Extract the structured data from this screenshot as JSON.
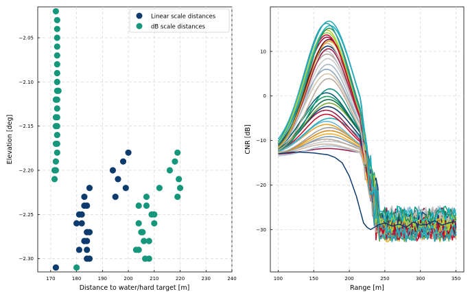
{
  "chart_data": [
    {
      "type": "scatter",
      "xlabel": "Distance to water/hard target [m]",
      "ylabel": "Elevation [deg]",
      "xlim": [
        165,
        240
      ],
      "ylim": [
        -2.315,
        -2.015
      ],
      "xticks": [
        170,
        180,
        190,
        200,
        210,
        220,
        230,
        240
      ],
      "yticks": [
        -2.3,
        -2.25,
        -2.2,
        -2.15,
        -2.1,
        -2.05
      ],
      "xtick_labels": [
        "170",
        "180",
        "190",
        "200",
        "210",
        "220",
        "230",
        "240"
      ],
      "ytick_labels": [
        "−2.30",
        "−2.25",
        "−2.20",
        "−2.15",
        "−2.10",
        "−2.05"
      ],
      "grid": true,
      "legend_position": "top-right",
      "series": [
        {
          "name": "Linear scale distances",
          "color": "#0d3b6e",
          "points": [
            [
              172,
              -2.31
            ],
            [
              180,
              -2.26
            ],
            [
              181,
              -2.29
            ],
            [
              181,
              -2.25
            ],
            [
              182,
              -2.25
            ],
            [
              182,
              -2.26
            ],
            [
              183,
              -2.23
            ],
            [
              183,
              -2.24
            ],
            [
              183,
              -2.28
            ],
            [
              184,
              -2.27
            ],
            [
              184,
              -2.28
            ],
            [
              184,
              -2.24
            ],
            [
              184,
              -2.29
            ],
            [
              184,
              -2.3
            ],
            [
              185,
              -2.3
            ],
            [
              185,
              -2.27
            ],
            [
              185,
              -2.22
            ],
            [
              194,
              -2.2
            ],
            [
              195,
              -2.23
            ],
            [
              196,
              -2.21
            ],
            [
              198,
              -2.19
            ],
            [
              199,
              -2.22
            ],
            [
              200,
              -2.18
            ]
          ]
        },
        {
          "name": "dB scale distances",
          "color": "#16967a",
          "points": [
            [
              171.5,
              -2.21
            ],
            [
              171.5,
              -2.2
            ],
            [
              172,
              -2.02
            ],
            [
              172,
              -2.12
            ],
            [
              172,
              -2.14
            ],
            [
              172,
              -2.15
            ],
            [
              172,
              -2.17
            ],
            [
              172,
              -2.19
            ],
            [
              172,
              -2.2
            ],
            [
              172.5,
              -2.03
            ],
            [
              172.5,
              -2.04
            ],
            [
              172.5,
              -2.05
            ],
            [
              172.5,
              -2.06
            ],
            [
              172.5,
              -2.07
            ],
            [
              172.5,
              -2.08
            ],
            [
              172.5,
              -2.09
            ],
            [
              172.5,
              -2.1
            ],
            [
              172.5,
              -2.11
            ],
            [
              172.5,
              -2.12
            ],
            [
              172.5,
              -2.13
            ],
            [
              172.5,
              -2.14
            ],
            [
              172.5,
              -2.15
            ],
            [
              172.5,
              -2.16
            ],
            [
              172.5,
              -2.17
            ],
            [
              172.5,
              -2.18
            ],
            [
              173,
              -2.11
            ],
            [
              180,
              -2.31
            ],
            [
              203,
              -2.29
            ],
            [
              204,
              -2.29
            ],
            [
              204,
              -2.24
            ],
            [
              204,
              -2.26
            ],
            [
              205,
              -2.27
            ],
            [
              205.5,
              -2.27
            ],
            [
              206,
              -2.28
            ],
            [
              206.5,
              -2.3
            ],
            [
              207,
              -2.24
            ],
            [
              207,
              -2.23
            ],
            [
              208,
              -2.3
            ],
            [
              208,
              -2.28
            ],
            [
              209,
              -2.25
            ],
            [
              210,
              -2.25
            ],
            [
              210,
              -2.26
            ],
            [
              212,
              -2.22
            ],
            [
              216,
              -2.2
            ],
            [
              218,
              -2.19
            ],
            [
              219,
              -2.18
            ],
            [
              219,
              -2.23
            ],
            [
              219.5,
              -2.21
            ],
            [
              220,
              -2.22
            ]
          ]
        }
      ]
    },
    {
      "type": "line",
      "xlabel": "Range [m]",
      "ylabel": "CNR [dB]",
      "xlim": [
        89,
        361
      ],
      "ylim": [
        -39.5,
        20
      ],
      "xticks": [
        100,
        150,
        200,
        250,
        300,
        350
      ],
      "yticks": [
        -30,
        -20,
        -10,
        0,
        10
      ],
      "xtick_labels": [
        "100",
        "150",
        "200",
        "250",
        "300",
        "350"
      ],
      "ytick_labels": [
        "−30",
        "−20",
        "−10",
        "0",
        "10"
      ],
      "grid": true,
      "curve_model": "gaussian rise from ~-13 dB at 100 m, peak near 172 m, collapse to the noise floor (~-27 dB) beyond ~240 m",
      "peak_cnr_values": [
        16.8,
        16.3,
        15.8,
        15.2,
        14.8,
        14.2,
        13.7,
        13.2,
        12.7,
        12.3,
        11.8,
        11.2,
        10.6,
        10.1,
        9.4,
        8.4,
        7.1,
        6.0,
        5.0,
        3.9,
        1.6,
        0.7,
        -0.1,
        -0.8,
        -1.6,
        -2.4,
        -3.2,
        -4.1,
        -5.0,
        -5.7,
        -6.4,
        -7.1,
        -7.8,
        -8.5,
        -9.1,
        -9.7,
        -10.2,
        -10.8,
        -11.2,
        -11.8
      ],
      "peak_colors": [
        "#2aa9b8",
        "#2a9fa8",
        "#17b5c4",
        "#2e8b57",
        "#b1d435",
        "#9fd04a",
        "#c8102e",
        "#a00b3b",
        "#6b0f2a",
        "#e8a22a",
        "#cdb79e",
        "#0d3b6e",
        "#9a1f4a",
        "#c0c0c0",
        "#b5a89a",
        "#c8c8c8",
        "#a9b7c6",
        "#8fa5b8",
        "#d4c4a8",
        "#bba99a",
        "#0e8f7e",
        "#0b5f6e",
        "#1a9e6e",
        "#126e45",
        "#7aa83a",
        "#0d3b6e",
        "#9a1f4a",
        "#c8102e",
        "#2aa9b8",
        "#6bb8d4",
        "#e8a22a",
        "#a0a0a0",
        "#d98b19",
        "#f0b030",
        "#7e9ab8",
        "#b5a89a",
        "#c8c8c8",
        "#cdb79e",
        "#a9c2d8",
        "#9a1f4a"
      ],
      "anomalous_series": {
        "color": "#0d3b6e",
        "description": "flat curve, about -13 dB at 100 m falling to about -30 dB near 220 m, then noisy around -29 dB",
        "x": [
          100,
          110,
          120,
          130,
          140,
          150,
          160,
          170,
          180,
          190,
          200,
          210,
          215,
          220,
          225,
          230,
          240,
          250,
          260,
          270,
          280,
          290,
          300,
          310,
          320,
          330,
          340,
          350
        ],
        "y": [
          -13.0,
          -12.8,
          -12.6,
          -12.6,
          -12.7,
          -12.8,
          -13.0,
          -13.2,
          -13.8,
          -15.0,
          -18.0,
          -22.5,
          -25.5,
          -28.5,
          -29.5,
          -30.0,
          -29.0,
          -28.5,
          -29.2,
          -28.8,
          -29.5,
          -28.3,
          -29.0,
          -28.8,
          -28.0,
          -29.0,
          -28.5,
          -28.2
        ]
      }
    }
  ]
}
